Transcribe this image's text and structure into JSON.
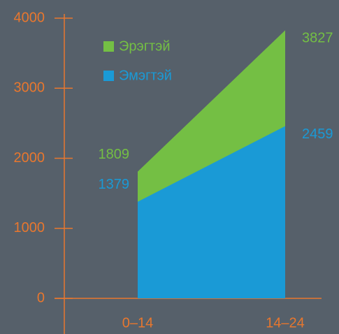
{
  "chart_data": {
    "type": "area",
    "categories": [
      "0–14",
      "14–24"
    ],
    "series": [
      {
        "name": "Эрэгтэй",
        "color": "#74bf44",
        "values": [
          1809,
          3827
        ]
      },
      {
        "name": "Эмэгтэй",
        "color": "#1a9ad6",
        "values": [
          1379,
          2459
        ]
      }
    ],
    "ylim": [
      0,
      4000
    ],
    "yticks": [
      0,
      1000,
      2000,
      3000,
      4000
    ]
  }
}
